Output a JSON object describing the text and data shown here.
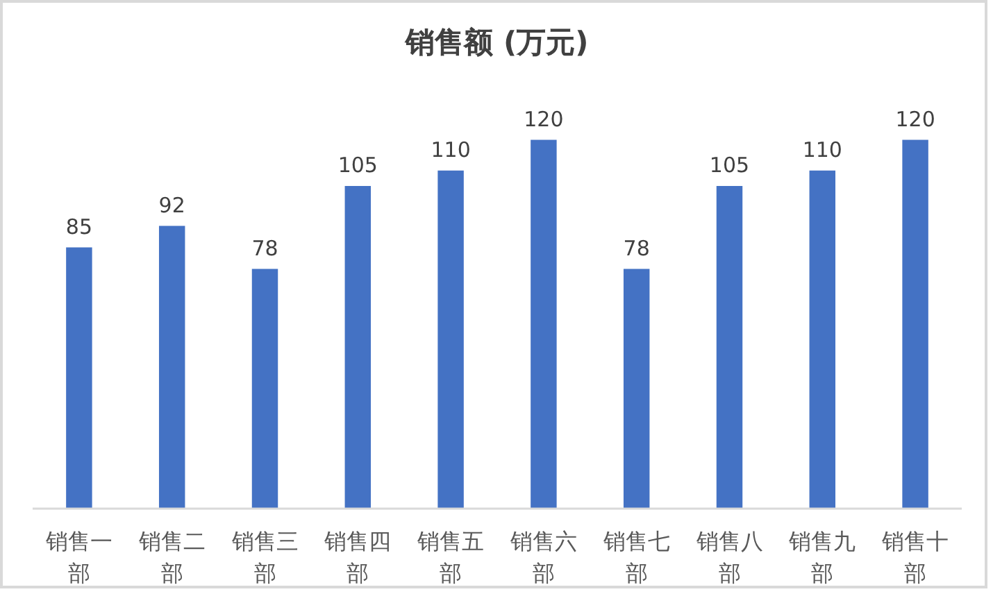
{
  "chart_data": {
    "type": "bar",
    "title": "销售额 (万元)",
    "categories": [
      "销售一部",
      "销售二部",
      "销售三部",
      "销售四部",
      "销售五部",
      "销售六部",
      "销售七部",
      "销售八部",
      "销售九部",
      "销售十部"
    ],
    "values": [
      85,
      92,
      78,
      105,
      110,
      120,
      78,
      105,
      110,
      120
    ],
    "color": "#4472c4",
    "data_labels": true
  }
}
